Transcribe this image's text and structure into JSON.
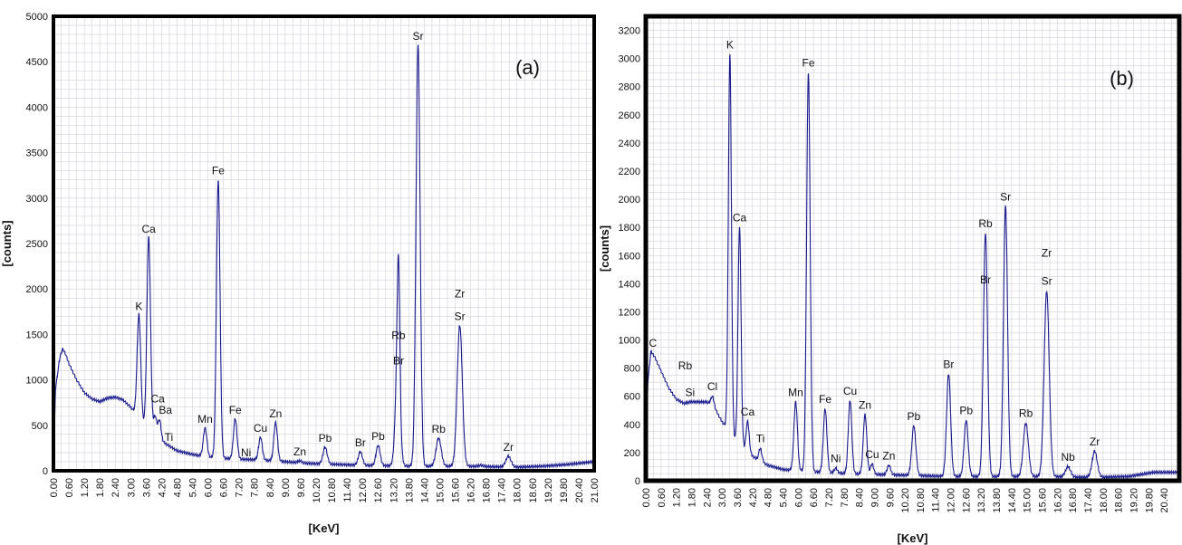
{
  "chart_data": [
    {
      "type": "line",
      "panel_label": "(a)",
      "xlabel": "[KeV]",
      "ylabel": "[counts]",
      "xlim": [
        0,
        21.0
      ],
      "ylim": [
        0,
        5000
      ],
      "grid": true,
      "line_color": "#1a1a8c",
      "x_ticks": [
        "0.00",
        "0.60",
        "1.20",
        "1.80",
        "2.40",
        "3.00",
        "3.60",
        "4.20",
        "4.80",
        "5.40",
        "6.00",
        "6.60",
        "7.20",
        "7.80",
        "8.40",
        "9.00",
        "9.60",
        "10.20",
        "10.80",
        "11.40",
        "12.00",
        "12.60",
        "13.20",
        "13.80",
        "14.40",
        "15.00",
        "15.60",
        "16.20",
        "16.80",
        "17.40",
        "18.00",
        "18.60",
        "19.20",
        "19.80",
        "20.40",
        "21.00"
      ],
      "y_ticks": [
        "0",
        "500",
        "1000",
        "1500",
        "2000",
        "2500",
        "3000",
        "3500",
        "4000",
        "4500",
        "5000"
      ],
      "background": [
        [
          0.0,
          40
        ],
        [
          0.08,
          900
        ],
        [
          0.25,
          1250
        ],
        [
          0.35,
          1340
        ],
        [
          0.45,
          1300
        ],
        [
          0.6,
          1180
        ],
        [
          0.9,
          1000
        ],
        [
          1.2,
          860
        ],
        [
          1.5,
          790
        ],
        [
          1.8,
          760
        ],
        [
          2.1,
          800
        ],
        [
          2.4,
          810
        ],
        [
          2.7,
          780
        ],
        [
          3.0,
          700
        ],
        [
          3.3,
          590
        ],
        [
          3.6,
          470
        ],
        [
          4.0,
          370
        ],
        [
          4.4,
          290
        ],
        [
          4.8,
          220
        ],
        [
          5.4,
          180
        ],
        [
          6.0,
          150
        ],
        [
          7.0,
          130
        ],
        [
          8.0,
          120
        ],
        [
          9.0,
          100
        ],
        [
          10.0,
          80
        ],
        [
          11.0,
          70
        ],
        [
          12.0,
          60
        ],
        [
          13.0,
          55
        ],
        [
          14.0,
          50
        ],
        [
          15.0,
          50
        ],
        [
          16.0,
          50
        ],
        [
          17.0,
          45
        ],
        [
          18.0,
          40
        ],
        [
          19.0,
          50
        ],
        [
          20.0,
          70
        ],
        [
          21.0,
          100
        ]
      ],
      "peaks": [
        {
          "x": 3.32,
          "y": 1720,
          "w": 0.07
        },
        {
          "x": 3.7,
          "y": 2570,
          "w": 0.07
        },
        {
          "x": 3.95,
          "y": 600,
          "w": 0.06
        },
        {
          "x": 4.12,
          "y": 560,
          "w": 0.06
        },
        {
          "x": 4.48,
          "y": 270,
          "w": 0.07
        },
        {
          "x": 5.89,
          "y": 470,
          "w": 0.07
        },
        {
          "x": 6.4,
          "y": 3200,
          "w": 0.07
        },
        {
          "x": 7.06,
          "y": 570,
          "w": 0.07
        },
        {
          "x": 7.48,
          "y": 100,
          "w": 0.06
        },
        {
          "x": 8.04,
          "y": 370,
          "w": 0.07
        },
        {
          "x": 8.63,
          "y": 530,
          "w": 0.07
        },
        {
          "x": 9.57,
          "y": 110,
          "w": 0.07
        },
        {
          "x": 10.55,
          "y": 260,
          "w": 0.08
        },
        {
          "x": 11.92,
          "y": 210,
          "w": 0.08
        },
        {
          "x": 12.61,
          "y": 280,
          "w": 0.08
        },
        {
          "x": 13.37,
          "y": 1100,
          "w": 0.09
        },
        {
          "x": 13.4,
          "y": 1380,
          "w": 0.05
        },
        {
          "x": 14.16,
          "y": 4680,
          "w": 0.08
        },
        {
          "x": 14.96,
          "y": 360,
          "w": 0.1
        },
        {
          "x": 15.78,
          "y": 1600,
          "w": 0.1
        },
        {
          "x": 16.6,
          "y": 60,
          "w": 0.1
        },
        {
          "x": 17.67,
          "y": 160,
          "w": 0.1
        }
      ],
      "labels": [
        {
          "text": "K",
          "x": 3.32,
          "y": 1720
        },
        {
          "text": "Ca",
          "x": 3.7,
          "y": 2570
        },
        {
          "text": "Ca",
          "x": 4.05,
          "y": 700
        },
        {
          "text": "Ba",
          "x": 4.35,
          "y": 580
        },
        {
          "text": "Ti",
          "x": 4.48,
          "y": 280
        },
        {
          "text": "Mn",
          "x": 5.89,
          "y": 480
        },
        {
          "text": "Fe",
          "x": 6.4,
          "y": 3210
        },
        {
          "text": "Fe",
          "x": 7.06,
          "y": 580
        },
        {
          "text": "Ni",
          "x": 7.48,
          "y": 110
        },
        {
          "text": "Cu",
          "x": 8.04,
          "y": 380
        },
        {
          "text": "Zn",
          "x": 8.63,
          "y": 540
        },
        {
          "text": "Zn",
          "x": 9.57,
          "y": 120
        },
        {
          "text": "Pb",
          "x": 10.55,
          "y": 270
        },
        {
          "text": "Br",
          "x": 11.92,
          "y": 220
        },
        {
          "text": "Pb",
          "x": 12.61,
          "y": 290
        },
        {
          "text": "Br",
          "x": 13.4,
          "y": 1120
        },
        {
          "text": "Rb",
          "x": 13.4,
          "y": 1400
        },
        {
          "text": "Sr",
          "x": 14.16,
          "y": 4690
        },
        {
          "text": "Rb",
          "x": 14.96,
          "y": 370
        },
        {
          "text": "Sr",
          "x": 15.78,
          "y": 1610
        },
        {
          "text": "Zr",
          "x": 15.78,
          "y": 1860
        },
        {
          "text": "Zr",
          "x": 17.67,
          "y": 170
        }
      ]
    },
    {
      "type": "line",
      "panel_label": "(b)",
      "xlabel": "[KeV]",
      "ylabel": "[counts]",
      "xlim": [
        0,
        21.0
      ],
      "ylim": [
        0,
        3300
      ],
      "grid": true,
      "line_color": "#1a1a8c",
      "x_ticks": [
        "0.00",
        "0.60",
        "1.20",
        "1.80",
        "2.40",
        "3.00",
        "3.60",
        "4.20",
        "4.80",
        "5.40",
        "6.00",
        "6.60",
        "7.20",
        "7.80",
        "8.40",
        "9.00",
        "9.60",
        "10.20",
        "10.80",
        "11.40",
        "12.00",
        "12.60",
        "13.20",
        "13.80",
        "14.40",
        "15.00",
        "15.60",
        "16.20",
        "16.80",
        "17.40",
        "18.00",
        "18.60",
        "19.20",
        "19.80",
        "20.40"
      ],
      "y_ticks": [
        "0",
        "200",
        "400",
        "600",
        "800",
        "1000",
        "1200",
        "1400",
        "1600",
        "1800",
        "2000",
        "2200",
        "2400",
        "2600",
        "2800",
        "3000",
        "3200"
      ],
      "background": [
        [
          0.0,
          20
        ],
        [
          0.08,
          700
        ],
        [
          0.2,
          920
        ],
        [
          0.35,
          880
        ],
        [
          0.6,
          780
        ],
        [
          0.9,
          660
        ],
        [
          1.2,
          580
        ],
        [
          1.5,
          550
        ],
        [
          1.8,
          560
        ],
        [
          2.1,
          560
        ],
        [
          2.4,
          560
        ],
        [
          2.7,
          520
        ],
        [
          3.0,
          420
        ],
        [
          3.3,
          340
        ],
        [
          3.6,
          270
        ],
        [
          4.0,
          200
        ],
        [
          4.4,
          150
        ],
        [
          4.8,
          110
        ],
        [
          5.4,
          80
        ],
        [
          6.0,
          70
        ],
        [
          7.0,
          60
        ],
        [
          8.0,
          50
        ],
        [
          9.0,
          45
        ],
        [
          10.0,
          40
        ],
        [
          11.0,
          35
        ],
        [
          12.0,
          30
        ],
        [
          13.0,
          30
        ],
        [
          14.0,
          30
        ],
        [
          15.0,
          30
        ],
        [
          16.0,
          30
        ],
        [
          17.0,
          25
        ],
        [
          18.0,
          25
        ],
        [
          19.0,
          30
        ],
        [
          20.0,
          60
        ],
        [
          21.0,
          60
        ]
      ],
      "peaks": [
        {
          "x": 1.74,
          "y": 560,
          "w": 0.06
        },
        {
          "x": 2.62,
          "y": 600,
          "w": 0.06
        },
        {
          "x": 3.31,
          "y": 3030,
          "w": 0.06
        },
        {
          "x": 3.69,
          "y": 1800,
          "w": 0.06
        },
        {
          "x": 4.01,
          "y": 420,
          "w": 0.06
        },
        {
          "x": 4.51,
          "y": 230,
          "w": 0.06
        },
        {
          "x": 5.9,
          "y": 560,
          "w": 0.07
        },
        {
          "x": 6.4,
          "y": 2900,
          "w": 0.07
        },
        {
          "x": 7.06,
          "y": 510,
          "w": 0.07
        },
        {
          "x": 7.48,
          "y": 90,
          "w": 0.06
        },
        {
          "x": 8.04,
          "y": 570,
          "w": 0.07
        },
        {
          "x": 8.63,
          "y": 470,
          "w": 0.07
        },
        {
          "x": 8.91,
          "y": 120,
          "w": 0.06
        },
        {
          "x": 9.57,
          "y": 110,
          "w": 0.07
        },
        {
          "x": 10.55,
          "y": 390,
          "w": 0.08
        },
        {
          "x": 11.92,
          "y": 760,
          "w": 0.08
        },
        {
          "x": 12.61,
          "y": 430,
          "w": 0.08
        },
        {
          "x": 13.37,
          "y": 1760,
          "w": 0.08
        },
        {
          "x": 14.16,
          "y": 1950,
          "w": 0.08
        },
        {
          "x": 14.96,
          "y": 410,
          "w": 0.1
        },
        {
          "x": 15.78,
          "y": 1350,
          "w": 0.1
        },
        {
          "x": 16.62,
          "y": 100,
          "w": 0.1
        },
        {
          "x": 17.67,
          "y": 210,
          "w": 0.1
        }
      ],
      "labels": [
        {
          "text": "C",
          "x": 0.28,
          "y": 920
        },
        {
          "text": "Rb",
          "x": 1.55,
          "y": 760
        },
        {
          "text": "Si",
          "x": 1.74,
          "y": 570
        },
        {
          "text": "Cl",
          "x": 2.62,
          "y": 610
        },
        {
          "text": "K",
          "x": 3.31,
          "y": 3040
        },
        {
          "text": "Ca",
          "x": 3.69,
          "y": 1810
        },
        {
          "text": "Ca",
          "x": 4.01,
          "y": 430
        },
        {
          "text": "Ti",
          "x": 4.51,
          "y": 240
        },
        {
          "text": "Mn",
          "x": 5.9,
          "y": 570
        },
        {
          "text": "Fe",
          "x": 6.4,
          "y": 2910
        },
        {
          "text": "Fe",
          "x": 7.06,
          "y": 520
        },
        {
          "text": "Ni",
          "x": 7.48,
          "y": 100
        },
        {
          "text": "Cu",
          "x": 8.04,
          "y": 580
        },
        {
          "text": "Zn",
          "x": 8.63,
          "y": 480
        },
        {
          "text": "Cu",
          "x": 8.91,
          "y": 130
        },
        {
          "text": "Zn",
          "x": 9.57,
          "y": 120
        },
        {
          "text": "Pb",
          "x": 10.55,
          "y": 400
        },
        {
          "text": "Br",
          "x": 11.92,
          "y": 770
        },
        {
          "text": "Pb",
          "x": 12.61,
          "y": 440
        },
        {
          "text": "Br",
          "x": 13.37,
          "y": 1370
        },
        {
          "text": "Rb",
          "x": 13.37,
          "y": 1770
        },
        {
          "text": "Sr",
          "x": 14.16,
          "y": 1960
        },
        {
          "text": "Rb",
          "x": 14.96,
          "y": 420
        },
        {
          "text": "Sr",
          "x": 15.78,
          "y": 1360
        },
        {
          "text": "Zr",
          "x": 15.78,
          "y": 1560
        },
        {
          "text": "Nb",
          "x": 16.62,
          "y": 110
        },
        {
          "text": "Zr",
          "x": 17.67,
          "y": 220
        }
      ]
    }
  ]
}
